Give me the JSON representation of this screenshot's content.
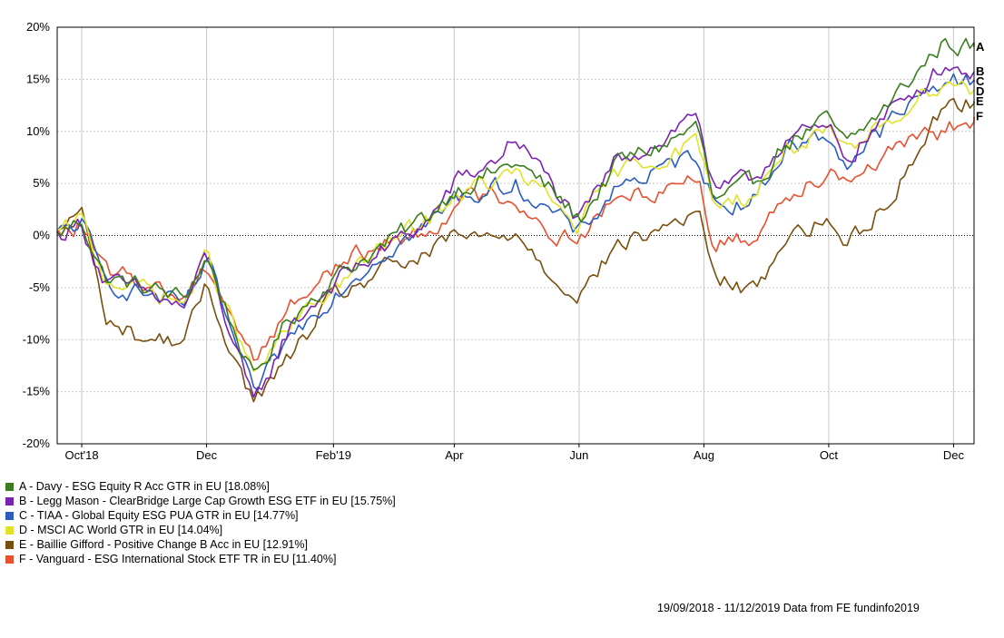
{
  "chart_data": {
    "type": "line",
    "title": "",
    "xlabel": "",
    "ylabel": "",
    "ylim": [
      -20,
      20
    ],
    "y_ticks": [
      "20%",
      "15%",
      "10%",
      "5%",
      "0%",
      "-5%",
      "-10%",
      "-15%",
      "-20%"
    ],
    "x_ticks": [
      "Oct'18",
      "Dec",
      "Feb'19",
      "Apr",
      "Jun",
      "Aug",
      "Oct",
      "Dec"
    ],
    "x_tick_dates": [
      "2018-10-01",
      "2018-12-01",
      "2019-02-01",
      "2019-04-01",
      "2019-06-01",
      "2019-08-01",
      "2019-10-01",
      "2019-12-01"
    ],
    "x_range": [
      "2018-09-19",
      "2019-12-11"
    ],
    "grid": true,
    "legend_position": "bottom-left",
    "series": [
      {
        "label": "A",
        "name": "A - Davy - ESG Equity R Acc GTR in EU [18.08%]",
        "color": "#3a7d1e",
        "points": [
          [
            "2018-09-19",
            0
          ],
          [
            "2018-10-01",
            1.5
          ],
          [
            "2018-10-12",
            -4
          ],
          [
            "2018-11-01",
            -5
          ],
          [
            "2018-11-20",
            -6
          ],
          [
            "2018-12-01",
            -2
          ],
          [
            "2018-12-24",
            -14
          ],
          [
            "2019-01-10",
            -8
          ],
          [
            "2019-02-01",
            -4
          ],
          [
            "2019-03-01",
            -0.5
          ],
          [
            "2019-03-20",
            2
          ],
          [
            "2019-04-01",
            4.5
          ],
          [
            "2019-04-20",
            6
          ],
          [
            "2019-05-01",
            7
          ],
          [
            "2019-05-20",
            4
          ],
          [
            "2019-06-01",
            1.5
          ],
          [
            "2019-06-20",
            7
          ],
          [
            "2019-07-10",
            8.5
          ],
          [
            "2019-07-29",
            10.5
          ],
          [
            "2019-08-06",
            3
          ],
          [
            "2019-08-26",
            5
          ],
          [
            "2019-09-10",
            9
          ],
          [
            "2019-10-01",
            11
          ],
          [
            "2019-10-10",
            8.5
          ],
          [
            "2019-11-01",
            13
          ],
          [
            "2019-11-26",
            18.5
          ],
          [
            "2019-12-11",
            18.08
          ]
        ]
      },
      {
        "label": "B",
        "name": "B - Legg Mason - ClearBridge Large Cap Growth ESG ETF in EU [15.75%]",
        "color": "#7b22b4",
        "points": [
          [
            "2018-09-19",
            0
          ],
          [
            "2018-10-01",
            1.2
          ],
          [
            "2018-10-12",
            -4.5
          ],
          [
            "2018-11-01",
            -5.5
          ],
          [
            "2018-11-20",
            -7
          ],
          [
            "2018-12-01",
            -2
          ],
          [
            "2018-12-24",
            -16.5
          ],
          [
            "2019-01-10",
            -9
          ],
          [
            "2019-02-01",
            -4.5
          ],
          [
            "2019-03-01",
            -1
          ],
          [
            "2019-03-20",
            1.5
          ],
          [
            "2019-04-01",
            5
          ],
          [
            "2019-04-20",
            7
          ],
          [
            "2019-05-01",
            9.5
          ],
          [
            "2019-05-20",
            4.5
          ],
          [
            "2019-06-01",
            1
          ],
          [
            "2019-06-20",
            7.5
          ],
          [
            "2019-07-10",
            9
          ],
          [
            "2019-07-29",
            12
          ],
          [
            "2019-08-06",
            4
          ],
          [
            "2019-08-26",
            5.5
          ],
          [
            "2019-09-10",
            9.5
          ],
          [
            "2019-10-01",
            10
          ],
          [
            "2019-10-10",
            7.5
          ],
          [
            "2019-11-01",
            12
          ],
          [
            "2019-11-26",
            16.5
          ],
          [
            "2019-12-11",
            15.75
          ]
        ]
      },
      {
        "label": "C",
        "name": "C - TIAA - Global Equity ESG PUA GTR in EU [14.77%]",
        "color": "#2a5dbf",
        "points": [
          [
            "2018-09-19",
            0
          ],
          [
            "2018-10-01",
            1.3
          ],
          [
            "2018-10-12",
            -4.5
          ],
          [
            "2018-11-01",
            -5.5
          ],
          [
            "2018-11-20",
            -7
          ],
          [
            "2018-12-01",
            -2.5
          ],
          [
            "2018-12-24",
            -15.5
          ],
          [
            "2019-01-10",
            -10
          ],
          [
            "2019-02-01",
            -5.5
          ],
          [
            "2019-03-01",
            -1
          ],
          [
            "2019-03-20",
            1
          ],
          [
            "2019-04-01",
            3.5
          ],
          [
            "2019-04-20",
            4.5
          ],
          [
            "2019-05-01",
            5
          ],
          [
            "2019-05-20",
            2
          ],
          [
            "2019-06-01",
            0
          ],
          [
            "2019-06-20",
            5
          ],
          [
            "2019-07-10",
            6
          ],
          [
            "2019-07-29",
            8
          ],
          [
            "2019-08-06",
            3
          ],
          [
            "2019-08-26",
            3.5
          ],
          [
            "2019-09-10",
            8.5
          ],
          [
            "2019-10-01",
            9.5
          ],
          [
            "2019-10-10",
            7
          ],
          [
            "2019-11-01",
            11
          ],
          [
            "2019-11-26",
            15
          ],
          [
            "2019-12-11",
            14.77
          ]
        ]
      },
      {
        "label": "D",
        "name": "D - MSCI AC World GTR in EU [14.04%]",
        "color": "#e2e22a",
        "points": [
          [
            "2018-09-19",
            0
          ],
          [
            "2018-10-01",
            1.4
          ],
          [
            "2018-10-12",
            -4
          ],
          [
            "2018-11-01",
            -5
          ],
          [
            "2018-11-20",
            -6.5
          ],
          [
            "2018-12-01",
            -2
          ],
          [
            "2018-12-24",
            -13.5
          ],
          [
            "2019-01-10",
            -9
          ],
          [
            "2019-02-01",
            -5
          ],
          [
            "2019-03-01",
            -0.5
          ],
          [
            "2019-03-20",
            1.5
          ],
          [
            "2019-04-01",
            4
          ],
          [
            "2019-04-20",
            5
          ],
          [
            "2019-05-01",
            6
          ],
          [
            "2019-05-20",
            3
          ],
          [
            "2019-06-01",
            1
          ],
          [
            "2019-06-20",
            6
          ],
          [
            "2019-07-10",
            7.5
          ],
          [
            "2019-07-29",
            9
          ],
          [
            "2019-08-06",
            3
          ],
          [
            "2019-08-26",
            4
          ],
          [
            "2019-09-10",
            8.5
          ],
          [
            "2019-10-01",
            9.5
          ],
          [
            "2019-10-10",
            7.5
          ],
          [
            "2019-11-01",
            11.5
          ],
          [
            "2019-11-26",
            15
          ],
          [
            "2019-12-11",
            14.04
          ]
        ]
      },
      {
        "label": "E",
        "name": "E - Baillie Gifford - Positive Change B Acc in EU [12.91%]",
        "color": "#7a4e0c",
        "points": [
          [
            "2018-09-19",
            0
          ],
          [
            "2018-10-01",
            2.8
          ],
          [
            "2018-10-12",
            -8
          ],
          [
            "2018-11-01",
            -10
          ],
          [
            "2018-11-20",
            -10
          ],
          [
            "2018-12-01",
            -5
          ],
          [
            "2018-12-24",
            -16
          ],
          [
            "2019-01-10",
            -12
          ],
          [
            "2019-02-01",
            -6
          ],
          [
            "2019-03-01",
            -3
          ],
          [
            "2019-03-20",
            -2
          ],
          [
            "2019-04-01",
            0
          ],
          [
            "2019-04-20",
            -0.5
          ],
          [
            "2019-05-01",
            0.5
          ],
          [
            "2019-05-20",
            -4
          ],
          [
            "2019-06-01",
            -5.5
          ],
          [
            "2019-06-20",
            -1
          ],
          [
            "2019-07-10",
            0.5
          ],
          [
            "2019-07-29",
            2.5
          ],
          [
            "2019-08-06",
            -4
          ],
          [
            "2019-08-26",
            -5.5
          ],
          [
            "2019-09-10",
            0
          ],
          [
            "2019-10-01",
            1.5
          ],
          [
            "2019-10-10",
            -1
          ],
          [
            "2019-11-01",
            4
          ],
          [
            "2019-11-26",
            12.5
          ],
          [
            "2019-12-11",
            12.91
          ]
        ]
      },
      {
        "label": "F",
        "name": "F - Vanguard - ESG International Stock ETF TR in EU [11.40%]",
        "color": "#e8502e",
        "points": [
          [
            "2018-09-19",
            0
          ],
          [
            "2018-10-01",
            1
          ],
          [
            "2018-10-12",
            -3.5
          ],
          [
            "2018-11-01",
            -4.5
          ],
          [
            "2018-11-20",
            -6
          ],
          [
            "2018-12-01",
            -2.5
          ],
          [
            "2018-12-24",
            -12
          ],
          [
            "2019-01-10",
            -7
          ],
          [
            "2019-02-01",
            -3
          ],
          [
            "2019-03-01",
            -0.5
          ],
          [
            "2019-03-20",
            0.5
          ],
          [
            "2019-04-01",
            3
          ],
          [
            "2019-04-20",
            4
          ],
          [
            "2019-05-01",
            3.5
          ],
          [
            "2019-05-20",
            0
          ],
          [
            "2019-06-01",
            0
          ],
          [
            "2019-06-20",
            3.5
          ],
          [
            "2019-07-10",
            4.5
          ],
          [
            "2019-07-29",
            6
          ],
          [
            "2019-08-06",
            -1
          ],
          [
            "2019-08-26",
            0
          ],
          [
            "2019-09-10",
            4
          ],
          [
            "2019-10-01",
            6.5
          ],
          [
            "2019-10-10",
            5.5
          ],
          [
            "2019-11-01",
            8
          ],
          [
            "2019-11-26",
            10
          ],
          [
            "2019-12-11",
            11.4
          ]
        ]
      }
    ]
  },
  "footer": {
    "note": "19/09/2018 - 11/12/2019 Data from FE fundinfo2019"
  }
}
